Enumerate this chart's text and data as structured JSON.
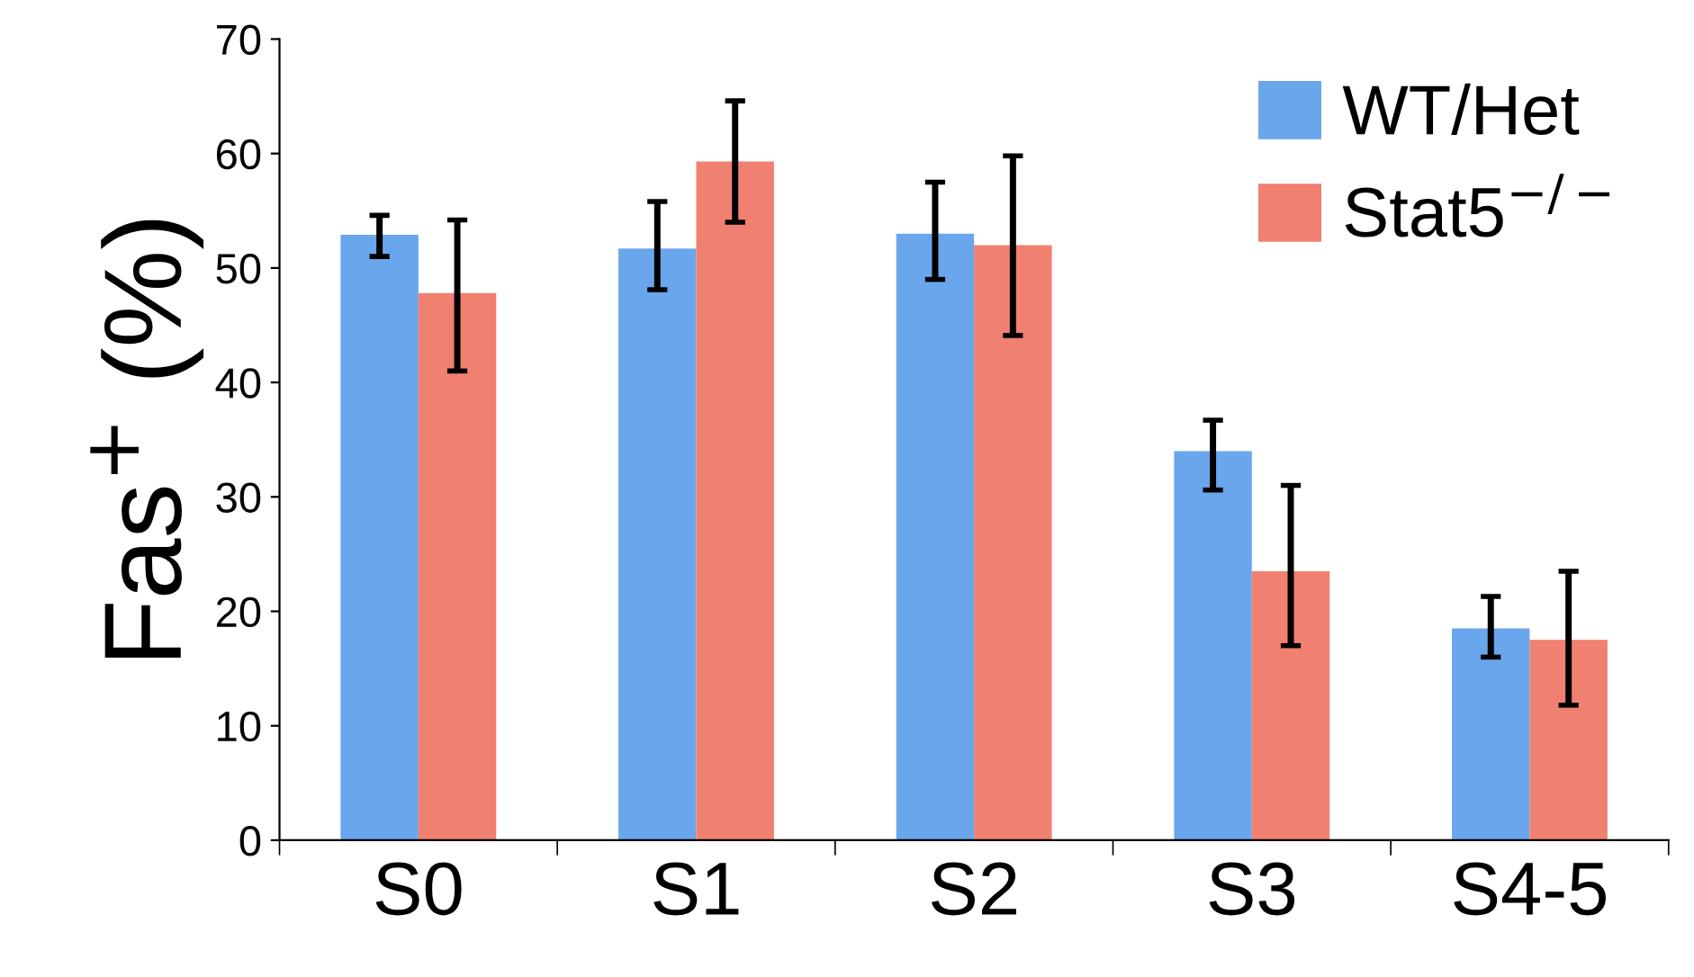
{
  "chart_data": {
    "type": "bar",
    "ylabel": "Fas$^{+}$ (%)",
    "categories": [
      "S0",
      "S1",
      "S2",
      "S3",
      "S4-5"
    ],
    "series": [
      {
        "name": "WT/Het",
        "color": "#6aa6ec",
        "values": [
          52.9,
          51.7,
          53.0,
          34.0,
          18.5
        ],
        "errors": [
          [
            51.0,
            54.6
          ],
          [
            48.1,
            55.8
          ],
          [
            49.0,
            57.5
          ],
          [
            30.6,
            36.7
          ],
          [
            16.0,
            21.3
          ]
        ]
      },
      {
        "name": "Stat5$^{−/−}$",
        "color": "#f08070",
        "values": [
          47.8,
          59.3,
          52.0,
          23.5,
          17.5
        ],
        "errors": [
          [
            41.0,
            54.2
          ],
          [
            54.0,
            64.6
          ],
          [
            44.1,
            59.8
          ],
          [
            17.0,
            31.0
          ],
          [
            11.8,
            23.5
          ]
        ]
      }
    ],
    "ylim": [
      0,
      70
    ],
    "yticks": [
      0,
      10,
      20,
      30,
      40,
      50,
      60,
      70
    ],
    "grid": false,
    "legend": "top right"
  }
}
